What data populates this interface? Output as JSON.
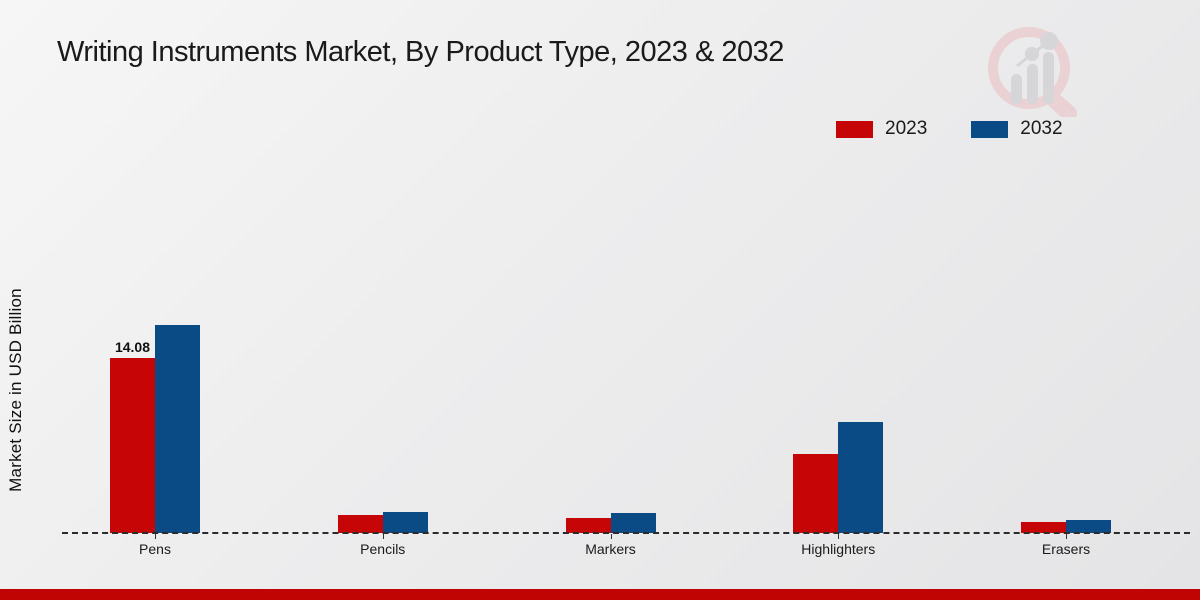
{
  "header": {
    "title": "Writing Instruments Market, By Product Type, 2023 & 2032"
  },
  "legend": {
    "items": [
      {
        "label": "2023",
        "color": "#c60606"
      },
      {
        "label": "2032",
        "color": "#0a4a85"
      }
    ]
  },
  "chart_data": {
    "type": "bar",
    "title": "Writing Instruments Market, By Product Type, 2023 & 2032",
    "xlabel": "",
    "ylabel": "Market Size in USD Billion",
    "categories": [
      "Pens",
      "Pencils",
      "Markers",
      "Highlighters",
      "Erasers"
    ],
    "series": [
      {
        "name": "2023",
        "color": "#c60606",
        "values": [
          14.08,
          1.45,
          1.2,
          6.35,
          0.9
        ]
      },
      {
        "name": "2032",
        "color": "#0a4a85",
        "values": [
          16.73,
          1.7,
          1.6,
          8.9,
          1.05
        ]
      }
    ],
    "ylim": [
      0,
      18
    ],
    "grid": false,
    "axis_style": "dashed zero baseline only, no y-axis ticks",
    "legend_position": "top-right",
    "annotations": [
      {
        "category": "Pens",
        "series": "2023",
        "text": "14.08"
      }
    ]
  },
  "branding": {
    "logo": "market-research-future-watermark",
    "footer_band_color": "#c00404"
  }
}
